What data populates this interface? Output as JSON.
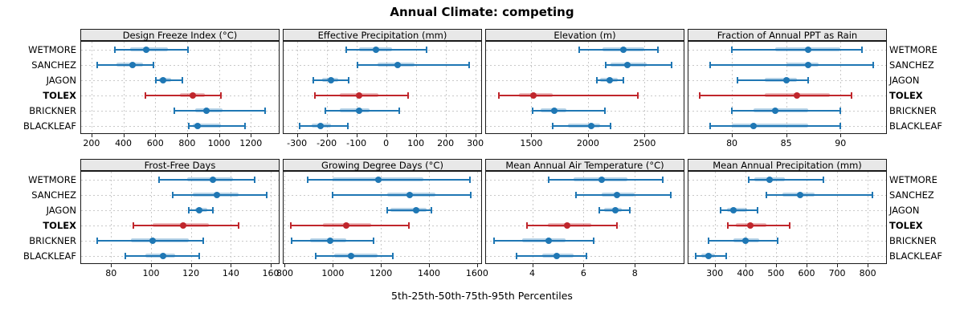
{
  "chart_data": {
    "type": "scatter",
    "style": "lattice percentile range dotplot (5th-25th-50th-75th-95th)",
    "title": "Annual Climate: competing",
    "xlabel": "5th-25th-50th-75th-95th Percentiles",
    "legend_position": "none",
    "grid": "dashed",
    "stations": [
      "WETMORE",
      "SANCHEZ",
      "JAGON",
      "TOLEX",
      "BRICKNER",
      "BLACKLEAF"
    ],
    "highlight_station": "TOLEX",
    "percentiles": [
      5,
      25,
      50,
      75,
      95
    ],
    "colors": {
      "normal": "#1f77b4",
      "highlight": "#c0262c",
      "grid": "#c9c9c9",
      "strip_bg": "#e8e8e8",
      "border": "#1a1a1a"
    },
    "panels": [
      {
        "title": "Design Freeze Index (°C)",
        "row": 0,
        "col": 0,
        "xlim": [
          135,
          1375
        ],
        "ticks": [
          200,
          400,
          600,
          800,
          1000,
          1200
        ],
        "values": {
          "WETMORE": [
            345,
            440,
            545,
            680,
            805
          ],
          "SANCHEZ": [
            235,
            355,
            460,
            525,
            590
          ],
          "JAGON": [
            605,
            622,
            648,
            702,
            770
          ],
          "TOLEX": [
            540,
            755,
            835,
            910,
            1010
          ],
          "BRICKNER": [
            720,
            850,
            920,
            1020,
            1290
          ],
          "BLACKLEAF": [
            810,
            835,
            865,
            1010,
            1165
          ]
        }
      },
      {
        "title": "Effective Precipitation (mm)",
        "row": 0,
        "col": 1,
        "xlim": [
          -345,
          320
        ],
        "ticks": [
          -300,
          -200,
          -100,
          0,
          100,
          200,
          300
        ],
        "values": {
          "WETMORE": [
            -135,
            -90,
            -35,
            20,
            135
          ],
          "SANCHEZ": [
            -95,
            -30,
            40,
            95,
            280
          ],
          "JAGON": [
            -245,
            -215,
            -185,
            -160,
            -125
          ],
          "TOLEX": [
            -240,
            -155,
            -90,
            -25,
            75
          ],
          "BRICKNER": [
            -205,
            -155,
            -90,
            -55,
            45
          ],
          "BLACKLEAF": [
            -290,
            -250,
            -220,
            -185,
            -130
          ]
        }
      },
      {
        "title": "Elevation (m)",
        "row": 0,
        "col": 2,
        "xlim": [
          1100,
          2845
        ],
        "ticks": [
          1500,
          2000,
          2500
        ],
        "values": {
          "WETMORE": [
            1920,
            2130,
            2310,
            2500,
            2620
          ],
          "SANCHEZ": [
            2155,
            2200,
            2350,
            2520,
            2740
          ],
          "JAGON": [
            2080,
            2105,
            2190,
            2260,
            2310
          ],
          "TOLEX": [
            1210,
            1390,
            1520,
            1690,
            2440
          ],
          "BRICKNER": [
            1510,
            1580,
            1700,
            1810,
            2150
          ],
          "BLACKLEAF": [
            1690,
            1820,
            2030,
            2110,
            2200
          ]
        }
      },
      {
        "title": "Fraction of Annual PPT as Rain",
        "row": 0,
        "col": 3,
        "xlim": [
          76,
          94.2
        ],
        "ticks": [
          80,
          85,
          90
        ],
        "values": {
          "WETMORE": [
            80,
            84,
            87,
            90,
            92
          ],
          "SANCHEZ": [
            78,
            85,
            87,
            88,
            93
          ],
          "JAGON": [
            80.5,
            83,
            85,
            86,
            87
          ],
          "TOLEX": [
            77,
            83,
            86,
            89,
            91
          ],
          "BRICKNER": [
            80,
            82,
            84,
            87,
            90
          ],
          "BLACKLEAF": [
            78,
            80,
            82,
            87,
            90
          ]
        }
      },
      {
        "title": "Frost-Free Days",
        "row": 1,
        "col": 0,
        "xlim": [
          65,
          164
        ],
        "ticks": [
          80,
          100,
          120,
          140,
          160
        ],
        "values": {
          "WETMORE": [
            104,
            118,
            131,
            141,
            152
          ],
          "SANCHEZ": [
            111,
            121,
            133,
            144,
            158
          ],
          "JAGON": [
            119,
            122,
            124,
            128,
            131
          ],
          "TOLEX": [
            91,
            101,
            116,
            129,
            144
          ],
          "BRICKNER": [
            73,
            90,
            101,
            119,
            126
          ],
          "BLACKLEAF": [
            87,
            97,
            106,
            112,
            124
          ]
        }
      },
      {
        "title": "Growing Degree Days (°C)",
        "row": 1,
        "col": 1,
        "xlim": [
          795,
          1617
        ],
        "ticks": [
          800,
          1000,
          1200,
          1400,
          1600
        ],
        "values": {
          "WETMORE": [
            895,
            1000,
            1190,
            1375,
            1570
          ],
          "SANCHEZ": [
            1000,
            1225,
            1320,
            1425,
            1575
          ],
          "JAGON": [
            1225,
            1240,
            1345,
            1390,
            1410
          ],
          "TOLEX": [
            825,
            960,
            1055,
            1160,
            1315
          ],
          "BRICKNER": [
            830,
            905,
            990,
            1055,
            1170
          ],
          "BLACKLEAF": [
            930,
            1005,
            1075,
            1185,
            1250
          ]
        }
      },
      {
        "title": "Mean Annual Air Temperature (°C)",
        "row": 1,
        "col": 2,
        "xlim": [
          2.2,
          9.9
        ],
        "ticks": [
          4,
          6,
          8
        ],
        "values": {
          "WETMORE": [
            4.65,
            5.6,
            6.7,
            7.7,
            9.1
          ],
          "SANCHEZ": [
            5.7,
            6.7,
            7.3,
            8.0,
            9.4
          ],
          "JAGON": [
            6.6,
            6.8,
            7.25,
            7.5,
            7.8
          ],
          "TOLEX": [
            3.8,
            4.6,
            5.35,
            6.3,
            7.3
          ],
          "BRICKNER": [
            2.5,
            3.6,
            4.65,
            5.3,
            6.4
          ],
          "BLACKLEAF": [
            3.4,
            4.4,
            4.95,
            5.6,
            6.1
          ]
        }
      },
      {
        "title": "Mean Annual Precipitation (mm)",
        "row": 1,
        "col": 3,
        "xlim": [
          214,
          860
        ],
        "ticks": [
          300,
          400,
          500,
          600,
          700,
          800
        ],
        "values": {
          "WETMORE": [
            410,
            430,
            478,
            530,
            655
          ],
          "SANCHEZ": [
            470,
            520,
            578,
            625,
            815
          ],
          "JAGON": [
            320,
            340,
            360,
            405,
            440
          ],
          "TOLEX": [
            342,
            370,
            415,
            470,
            545
          ],
          "BRICKNER": [
            280,
            360,
            400,
            445,
            505
          ],
          "BLACKLEAF": [
            238,
            255,
            280,
            300,
            338
          ]
        }
      }
    ]
  }
}
